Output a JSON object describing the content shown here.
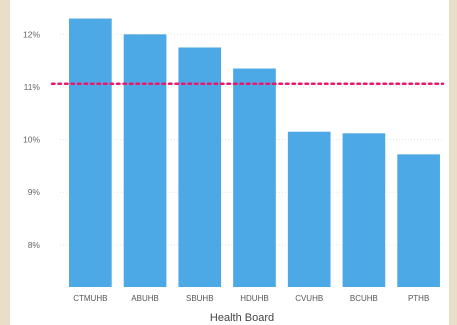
{
  "chart_data": {
    "type": "bar",
    "xlabel": "Health Board",
    "ylabel": "",
    "categories": [
      "CTMUHB",
      "ABUHB",
      "SBUHB",
      "HDUHB",
      "CVUHB",
      "BCUHB",
      "PTHB"
    ],
    "values": [
      12.3,
      12.0,
      11.75,
      11.35,
      10.15,
      10.12,
      9.72
    ],
    "y_ticks": [
      8,
      9,
      10,
      11,
      12
    ],
    "y_tick_labels": [
      "8%",
      "9%",
      "10%",
      "11%",
      "12%"
    ],
    "ylim": [
      7.2,
      12.5
    ],
    "reference_line": {
      "value": 11.06,
      "style": "dotted",
      "color": "#e8186d"
    },
    "grid": true,
    "bar_color": "#4da9e6"
  }
}
